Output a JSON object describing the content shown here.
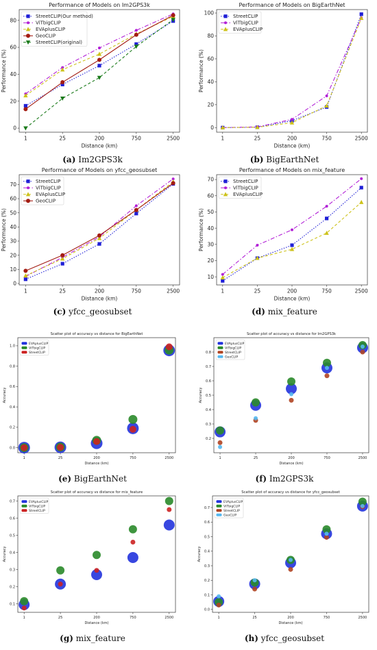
{
  "captions": [
    {
      "letter": "(a)",
      "text": "Im2GPS3k"
    },
    {
      "letter": "(b)",
      "text": "BigEarthNet"
    },
    {
      "letter": "(c)",
      "text": "yfcc_geosubset"
    },
    {
      "letter": "(d)",
      "text": "mix_feature"
    },
    {
      "letter": "(e)",
      "text": "BigEarthNet"
    },
    {
      "letter": "(f)",
      "text": "Im2GPS3k"
    },
    {
      "letter": "(g)",
      "text": "mix_feature"
    },
    {
      "letter": "(h)",
      "text": "yfcc_geosubset"
    }
  ],
  "chart_data": [
    {
      "type": "line",
      "title": "Performance of Models on Im2GPS3k",
      "xlabel": "Distance (km)",
      "ylabel": "Performance (%)",
      "categories": [
        "1",
        "25",
        "200",
        "750",
        "2500"
      ],
      "ylim": [
        -3,
        88
      ],
      "yticks": [
        0,
        20,
        40,
        60,
        80
      ],
      "legend": "top-left",
      "series": [
        {
          "name": "StreetCLIP(Our method)",
          "color": "#1f1fd6",
          "marker": "square",
          "dash": "dotted",
          "values": [
            16.6,
            32.4,
            46.4,
            62.4,
            79.5
          ]
        },
        {
          "name": "ViTbigCLIP",
          "color": "#b21fd6",
          "marker": "circle-small",
          "dash": "dashdot",
          "values": [
            25.5,
            45.0,
            59.5,
            72.6,
            84.8
          ]
        },
        {
          "name": "EVAplusCLIP",
          "color": "#cdc21a",
          "marker": "triangle-up",
          "dash": "dashed",
          "values": [
            24.2,
            43.4,
            55.0,
            69.9,
            83.0
          ]
        },
        {
          "name": "GeoCLIP",
          "color": "#a31c12",
          "marker": "circle",
          "dash": "solid",
          "values": [
            14.1,
            34.1,
            50.7,
            69.3,
            83.8
          ]
        },
        {
          "name": "StreetCLIP(original)",
          "color": "#1a7a1a",
          "marker": "triangle-down",
          "dash": "dashed",
          "values": [
            0,
            22.1,
            37.5,
            60.6,
            80.5
          ]
        }
      ]
    },
    {
      "type": "line",
      "title": "Performance of Models on BigEarthNet",
      "xlabel": "Distance (km)",
      "ylabel": "Performance (%)",
      "categories": [
        "1",
        "25",
        "200",
        "750",
        "2500"
      ],
      "ylim": [
        -4,
        103
      ],
      "yticks": [
        0,
        20,
        40,
        60,
        80,
        100
      ],
      "legend": "top-left",
      "series": [
        {
          "name": "StreetCLIP",
          "color": "#1f1fd6",
          "marker": "square",
          "dash": "dotted",
          "values": [
            0,
            0.3,
            6.0,
            18.0,
            99.0
          ]
        },
        {
          "name": "ViTbigCLIP",
          "color": "#b21fd6",
          "marker": "circle-small",
          "dash": "dashdot",
          "values": [
            0,
            0.6,
            7.2,
            27.7,
            95.8
          ]
        },
        {
          "name": "EVAplusCLIP",
          "color": "#cdc21a",
          "marker": "triangle-up",
          "dash": "dashed",
          "values": [
            0,
            0.3,
            4.3,
            19.0,
            95.5
          ]
        }
      ]
    },
    {
      "type": "line",
      "title": "Performance of Models on yfcc_geosubset",
      "xlabel": "Distance (km)",
      "ylabel": "Performance (%)",
      "categories": [
        "1",
        "25",
        "200",
        "750",
        "2500"
      ],
      "ylim": [
        -1,
        77
      ],
      "yticks": [
        0,
        10,
        20,
        30,
        40,
        50,
        60,
        70
      ],
      "legend": "top-left",
      "series": [
        {
          "name": "StreetCLIP",
          "color": "#1f1fd6",
          "marker": "square",
          "dash": "dotted",
          "values": [
            3.0,
            14.0,
            28.0,
            49.5,
            70.5
          ]
        },
        {
          "name": "ViTbigCLIP",
          "color": "#b21fd6",
          "marker": "circle-small",
          "dash": "dashdot",
          "values": [
            5.0,
            18.5,
            33.0,
            55.0,
            74.0
          ]
        },
        {
          "name": "EVAplusCLIP",
          "color": "#cdc21a",
          "marker": "triangle-up",
          "dash": "dashed",
          "values": [
            5.5,
            17.5,
            32.0,
            52.0,
            72.0
          ]
        },
        {
          "name": "GeoCLIP",
          "color": "#a31c12",
          "marker": "circle",
          "dash": "solid",
          "values": [
            9.0,
            20.0,
            34.0,
            52.0,
            71.0
          ]
        }
      ]
    },
    {
      "type": "line",
      "title": "Performance of Models on mix_feature",
      "xlabel": "Distance (km)",
      "ylabel": "Performance (%)",
      "categories": [
        "1",
        "25",
        "200",
        "750",
        "2500"
      ],
      "ylim": [
        5,
        73
      ],
      "yticks": [
        10,
        20,
        30,
        40,
        50,
        60,
        70
      ],
      "legend": "top-left",
      "series": [
        {
          "name": "StreetCLIP",
          "color": "#1f1fd6",
          "marker": "square",
          "dash": "dotted",
          "values": [
            7.5,
            21.5,
            29.5,
            46.0,
            65.0
          ]
        },
        {
          "name": "ViTbigCLIP",
          "color": "#b21fd6",
          "marker": "circle-small",
          "dash": "dashdot",
          "values": [
            11.5,
            29.5,
            39.0,
            53.5,
            70.5
          ]
        },
        {
          "name": "EVAplusCLIP",
          "color": "#cdc21a",
          "marker": "triangle-up",
          "dash": "dashed",
          "values": [
            9.5,
            21.5,
            27.0,
            37.0,
            56.0
          ]
        }
      ]
    },
    {
      "type": "scatter",
      "title": "Scatter plot of accuracy vs distance for BigEarthNet",
      "xlabel": "Distance (km)",
      "ylabel": "Accuracy",
      "categories": [
        "1",
        "25",
        "200",
        "750",
        "2500"
      ],
      "ylim": [
        -0.05,
        1.08
      ],
      "yticks": [
        "0.0",
        "0.2",
        "0.4",
        "0.6",
        "0.8",
        "1.0"
      ],
      "legend": "top-left",
      "series": [
        {
          "name": "EVAplusCLIP",
          "color": "#2233dd",
          "size": 8.5,
          "values": [
            0.0,
            0.003,
            0.043,
            0.19,
            0.955
          ]
        },
        {
          "name": "ViTbigCLIP",
          "color": "#2a8a2a",
          "size": 6.5,
          "values": [
            0.0,
            0.006,
            0.072,
            0.277,
            0.958
          ]
        },
        {
          "name": "StreetCLIP",
          "color": "#cc2222",
          "size": 5,
          "values": [
            0.0,
            0.003,
            0.06,
            0.18,
            0.99
          ]
        }
      ]
    },
    {
      "type": "scatter",
      "title": "Scatter plot of accuracy vs distance for Im2GPS3k",
      "xlabel": "Distance (km)",
      "ylabel": "Accuracy",
      "categories": [
        "1",
        "25",
        "200",
        "750",
        "2500"
      ],
      "ylim": [
        0.1,
        0.9
      ],
      "yticks": [
        "0.2",
        "0.3",
        "0.4",
        "0.5",
        "0.6",
        "0.7",
        "0.8"
      ],
      "legend": "top-left",
      "series": [
        {
          "name": "EVAplusCLIP",
          "color": "#2233dd",
          "size": 8,
          "values": [
            0.245,
            0.43,
            0.545,
            0.69,
            0.83
          ]
        },
        {
          "name": "ViTbigCLIP",
          "color": "#2a8a2a",
          "size": 6,
          "values": [
            0.255,
            0.45,
            0.595,
            0.725,
            0.848
          ]
        },
        {
          "name": "StreetCLIP",
          "color": "#b04422",
          "size": 3.5,
          "values": [
            0.17,
            0.325,
            0.465,
            0.635,
            0.8
          ]
        },
        {
          "name": "GeoCLIP",
          "color": "#55b8f0",
          "size": 3,
          "values": [
            0.14,
            0.34,
            0.507,
            0.69,
            0.838
          ]
        }
      ]
    },
    {
      "type": "scatter",
      "title": "Scatter plot of accuracy vs distance for mix_feature",
      "xlabel": "Distance (km)",
      "ylabel": "Accuracy",
      "categories": [
        "1",
        "25",
        "200",
        "750",
        "2500"
      ],
      "ylim": [
        0.05,
        0.73
      ],
      "yticks": [
        "0.1",
        "0.2",
        "0.3",
        "0.4",
        "0.5",
        "0.6",
        "0.7"
      ],
      "legend": "top-left",
      "series": [
        {
          "name": "EVAplusCLIP",
          "color": "#2233dd",
          "size": 8,
          "values": [
            0.095,
            0.215,
            0.27,
            0.37,
            0.56
          ]
        },
        {
          "name": "ViTbigCLIP",
          "color": "#2a8a2a",
          "size": 6,
          "values": [
            0.115,
            0.295,
            0.385,
            0.535,
            0.7
          ]
        },
        {
          "name": "StreetCLIP",
          "color": "#cc2222",
          "size": 3.5,
          "values": [
            0.075,
            0.215,
            0.295,
            0.46,
            0.65
          ]
        }
      ]
    },
    {
      "type": "scatter",
      "title": "Scatter plot of accuracy vs distance for yfcc_geosubset",
      "xlabel": "Distance (km)",
      "ylabel": "Accuracy",
      "categories": [
        "1",
        "25",
        "200",
        "750",
        "2500"
      ],
      "ylim": [
        -0.02,
        0.78
      ],
      "yticks": [
        "0.0",
        "0.1",
        "0.2",
        "0.3",
        "0.4",
        "0.5",
        "0.6",
        "0.7"
      ],
      "legend": "top-left",
      "series": [
        {
          "name": "EVAplusCLIP",
          "color": "#2233dd",
          "size": 8,
          "values": [
            0.055,
            0.175,
            0.32,
            0.52,
            0.71
          ]
        },
        {
          "name": "ViTbigCLIP",
          "color": "#2a8a2a",
          "size": 6,
          "values": [
            0.05,
            0.185,
            0.34,
            0.55,
            0.74
          ]
        },
        {
          "name": "StreetCLIP",
          "color": "#b04422",
          "size": 3.5,
          "values": [
            0.03,
            0.14,
            0.275,
            0.495,
            0.705
          ]
        },
        {
          "name": "GeoCLIP",
          "color": "#55b8f0",
          "size": 3,
          "values": [
            0.09,
            0.2,
            0.34,
            0.52,
            0.71
          ]
        }
      ]
    }
  ]
}
